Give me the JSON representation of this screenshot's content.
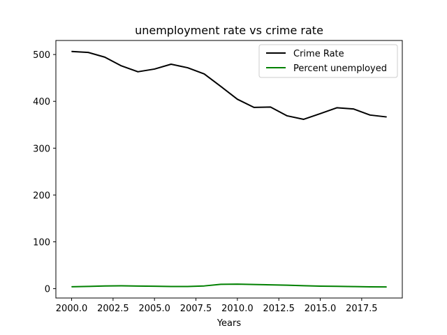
{
  "chart_data": {
    "type": "line",
    "title": "unemployment rate vs crime rate",
    "xlabel": "Years",
    "ylabel": "",
    "xlim": [
      1999.05,
      2019.95
    ],
    "ylim": [
      -20,
      530
    ],
    "x_ticks": [
      2000.0,
      2002.5,
      2005.0,
      2007.5,
      2010.0,
      2012.5,
      2015.0,
      2017.5
    ],
    "x_tick_labels": [
      "2000.0",
      "2002.5",
      "2005.0",
      "2007.5",
      "2010.0",
      "2012.5",
      "2015.0",
      "2017.5"
    ],
    "y_ticks": [
      0,
      100,
      200,
      300,
      400,
      500
    ],
    "y_tick_labels": [
      "0",
      "100",
      "200",
      "300",
      "400",
      "500"
    ],
    "grid": false,
    "legend_position": "top-right",
    "x": [
      2000,
      2001,
      2002,
      2003,
      2004,
      2005,
      2006,
      2007,
      2008,
      2009,
      2010,
      2011,
      2012,
      2013,
      2014,
      2015,
      2016,
      2017,
      2018,
      2019
    ],
    "series": [
      {
        "name": "Crime Rate",
        "color": "#000000",
        "values": [
          506.5,
          504.5,
          494.4,
          475.8,
          463.2,
          469.0,
          479.3,
          471.8,
          458.6,
          431.9,
          404.5,
          387.1,
          387.8,
          369.1,
          361.6,
          373.7,
          386.3,
          383.8,
          370.8,
          366.7
        ]
      },
      {
        "name": "Percent unemployed",
        "color": "#008000",
        "values": [
          4.0,
          4.7,
          5.8,
          6.0,
          5.5,
          5.1,
          4.6,
          4.6,
          5.8,
          9.3,
          9.6,
          8.9,
          8.1,
          7.4,
          6.2,
          5.3,
          4.9,
          4.4,
          3.9,
          3.7
        ]
      }
    ]
  }
}
